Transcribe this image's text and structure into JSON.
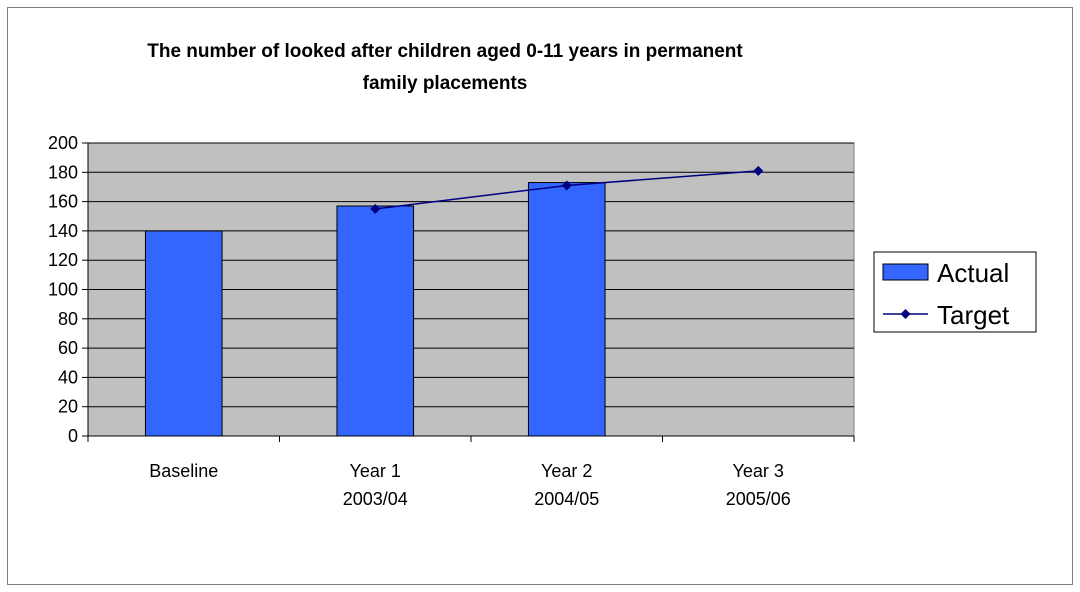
{
  "chart_data": {
    "type": "bar",
    "title_lines": [
      "The number of looked after children aged 0-11 years in permanent",
      "family placements"
    ],
    "categories": [
      [
        "Baseline"
      ],
      [
        "Year 1",
        "2003/04"
      ],
      [
        "Year 2",
        "2004/05"
      ],
      [
        "Year 3",
        "2005/06"
      ]
    ],
    "ylim": [
      0,
      200
    ],
    "yticks": [
      0,
      20,
      40,
      60,
      80,
      100,
      120,
      140,
      160,
      180,
      200
    ],
    "grid": true,
    "legend_position": "right",
    "series": [
      {
        "name": "Actual",
        "kind": "bar",
        "color": "#3366FF",
        "values": [
          140,
          157,
          173,
          null
        ]
      },
      {
        "name": "Target",
        "kind": "line",
        "color": "#000080",
        "values": [
          null,
          155,
          171,
          181
        ]
      }
    ],
    "colors": {
      "plot_background": "#C0C0C0",
      "gridline": "#000000"
    }
  }
}
